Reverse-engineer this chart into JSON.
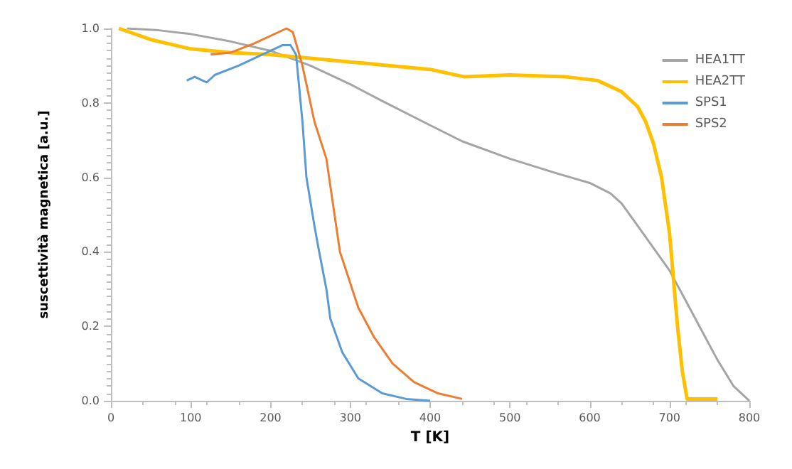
{
  "chart_data": {
    "type": "line",
    "xlabel": "T [K]",
    "ylabel": "suscettività magnetica [a.u.]",
    "xlim": [
      0,
      800
    ],
    "xticks": [
      0,
      100,
      200,
      300,
      400,
      500,
      600,
      700,
      800
    ],
    "ylim": [
      0,
      1.0
    ],
    "yticks": [
      {
        "value": 0,
        "label": "0.0"
      },
      {
        "value": 0.2,
        "label": "0.2"
      },
      {
        "value": 0.4,
        "label": "0.4"
      },
      {
        "value": 0.6,
        "label": "0.6"
      },
      {
        "value": 0.8,
        "label": "0.8"
      },
      {
        "value": 1.0,
        "label": "1.0"
      }
    ],
    "grid": false,
    "legend": "top right",
    "marker": "none",
    "line_style": "solid",
    "series": [
      {
        "name": "HEA1TT",
        "color": "#a5a5a5",
        "x": [
          20,
          60,
          100,
          150,
          200,
          250,
          300,
          340,
          400,
          440,
          500,
          560,
          600,
          626,
          640,
          660,
          680,
          700,
          720,
          740,
          760,
          780,
          800
        ],
        "values": [
          1.0,
          0.995,
          0.985,
          0.965,
          0.94,
          0.9,
          0.85,
          0.805,
          0.74,
          0.697,
          0.65,
          0.61,
          0.585,
          0.557,
          0.53,
          0.47,
          0.41,
          0.35,
          0.27,
          0.19,
          0.11,
          0.04,
          0.0
        ]
      },
      {
        "name": "HEA2TT",
        "color": "#ffc000",
        "x": [
          10,
          50,
          100,
          150,
          200,
          250,
          300,
          350,
          400,
          443,
          500,
          570,
          610,
          640,
          660,
          670,
          680,
          690,
          700,
          710,
          716,
          722,
          740,
          760
        ],
        "values": [
          1.0,
          0.97,
          0.945,
          0.935,
          0.93,
          0.92,
          0.91,
          0.9,
          0.89,
          0.87,
          0.875,
          0.87,
          0.86,
          0.83,
          0.79,
          0.75,
          0.69,
          0.6,
          0.45,
          0.2,
          0.08,
          0.005,
          0.005,
          0.005
        ]
      },
      {
        "name": "SPS1",
        "color": "#5b9bd5",
        "x": [
          95,
          105,
          115,
          120,
          130,
          160,
          200,
          215,
          225,
          232,
          240,
          245,
          255,
          261,
          270,
          275,
          290,
          310,
          340,
          370,
          400
        ],
        "values": [
          0.86,
          0.87,
          0.86,
          0.855,
          0.875,
          0.9,
          0.94,
          0.955,
          0.955,
          0.93,
          0.75,
          0.6,
          0.47,
          0.4,
          0.3,
          0.22,
          0.13,
          0.06,
          0.02,
          0.005,
          0.0
        ]
      },
      {
        "name": "SPS2",
        "color": "#ed7d31",
        "x": [
          125,
          150,
          180,
          210,
          220,
          228,
          240,
          255,
          270,
          287,
          310,
          330,
          353,
          380,
          410,
          440
        ],
        "values": [
          0.93,
          0.935,
          0.96,
          0.99,
          1.0,
          0.99,
          0.9,
          0.75,
          0.65,
          0.4,
          0.25,
          0.17,
          0.1,
          0.05,
          0.02,
          0.005
        ]
      }
    ]
  }
}
